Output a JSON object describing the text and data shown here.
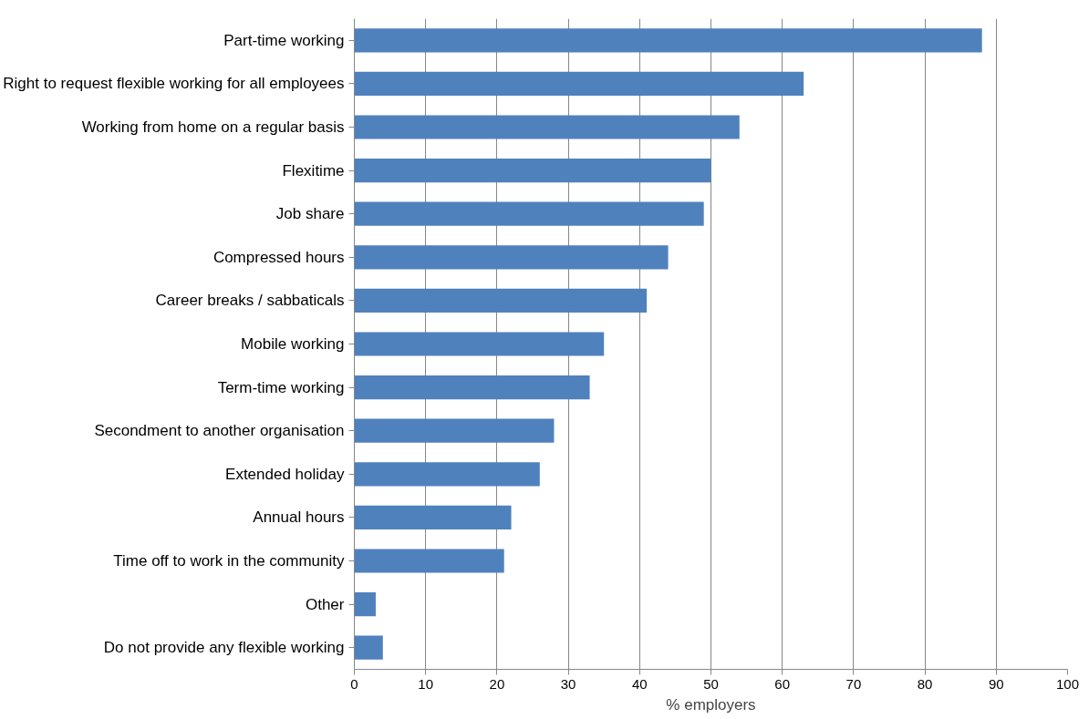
{
  "chart_data": {
    "type": "bar",
    "orientation": "horizontal",
    "xlabel": "% employers",
    "categories": [
      "Part-time working",
      "Right to request flexible working for all employees",
      "Working from home on a regular basis",
      "Flexitime",
      "Job share",
      "Compressed hours",
      "Career breaks / sabbaticals",
      "Mobile working",
      "Term-time working",
      "Secondment to another organisation",
      "Extended holiday",
      "Annual hours",
      "Time off to work in the community",
      "Other",
      "Do not provide any flexible working"
    ],
    "values": [
      88,
      63,
      54,
      50,
      49,
      44,
      41,
      35,
      33,
      28,
      26,
      22,
      21,
      3,
      4
    ],
    "color": "#4f81bd",
    "xlim": [
      0,
      100
    ],
    "xticks": [
      0,
      10,
      20,
      30,
      40,
      50,
      60,
      70,
      80,
      90,
      100
    ],
    "grid": "x"
  }
}
